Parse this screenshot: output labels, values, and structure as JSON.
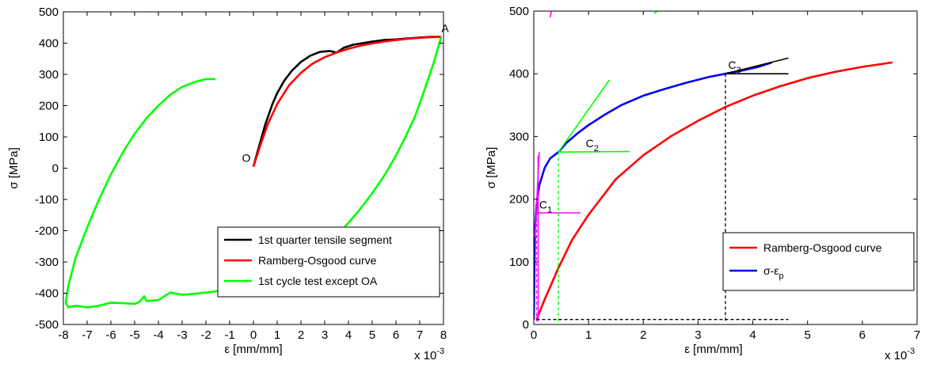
{
  "chart_data": [
    {
      "type": "line",
      "xlabel": "ε [mm/mm]",
      "ylabel": "σ [MPa]",
      "xscale_label": "x 10",
      "xscale_exp": "-3",
      "xlim": [
        -8,
        8
      ],
      "ylim": [
        -500,
        500
      ],
      "xticks": [
        "-8",
        "-7",
        "-6",
        "-5",
        "-4",
        "-3",
        "-2",
        "-1",
        "0",
        "1",
        "2",
        "3",
        "4",
        "5",
        "6",
        "7",
        "8"
      ],
      "yticks": [
        "-500",
        "-400",
        "-300",
        "-200",
        "-100",
        "0",
        "100",
        "200",
        "300",
        "400",
        "500"
      ],
      "grid": false,
      "legend_position": "lower-right",
      "annotations": [
        {
          "text": "O",
          "x": 0,
          "y": 0
        },
        {
          "text": "A",
          "x": 7.9,
          "y": 420
        }
      ],
      "series": [
        {
          "name": "1st quarter tensile segment",
          "color": "#000000",
          "x": [
            0,
            0.2,
            0.5,
            0.8,
            1.0,
            1.3,
            1.6,
            2.0,
            2.4,
            2.8,
            3.2,
            3.5,
            3.8,
            4.2,
            4.6,
            5.0,
            5.5,
            6.0,
            6.5,
            7.0,
            7.5,
            7.9
          ],
          "y": [
            5,
            60,
            140,
            205,
            240,
            280,
            310,
            340,
            360,
            372,
            375,
            370,
            385,
            395,
            400,
            405,
            410,
            412,
            415,
            418,
            420,
            420
          ]
        },
        {
          "name": "Ramberg-Osgood curve",
          "color": "#ff0000",
          "x": [
            0,
            0.3,
            0.6,
            1.0,
            1.5,
            2.0,
            2.5,
            3.0,
            3.5,
            4.0,
            4.5,
            5.0,
            5.5,
            6.0,
            6.5,
            7.0,
            7.5,
            7.9
          ],
          "y": [
            5,
            75,
            140,
            205,
            265,
            305,
            335,
            355,
            370,
            382,
            392,
            399,
            405,
            410,
            414,
            417,
            419,
            420
          ]
        },
        {
          "name": "1st cycle test except OA",
          "color": "#00ff00",
          "x": [
            7.9,
            7.6,
            7.2,
            6.8,
            6.4,
            6.0,
            5.5,
            5.0,
            4.5,
            4.0,
            3.6,
            3.2,
            2.8,
            2.4,
            2.0,
            1.5,
            1.0,
            0.5,
            0.0,
            -0.5,
            -1.0,
            -1.5,
            -2.0,
            -2.5,
            -3.0,
            -3.5,
            -4.0,
            -4.5,
            -4.6,
            -4.8,
            -5.0,
            -5.5,
            -6.0,
            -6.5,
            -7.0,
            -7.5,
            -7.8,
            -7.9,
            -7.8,
            -7.5,
            -7.0,
            -6.5,
            -6.0,
            -5.5,
            -5.0,
            -4.5,
            -4.0,
            -3.5,
            -3.0,
            -2.5,
            -2.0,
            -1.6
          ],
          "y": [
            420,
            340,
            250,
            165,
            100,
            40,
            -25,
            -80,
            -130,
            -175,
            -210,
            -240,
            -268,
            -290,
            -310,
            -330,
            -348,
            -362,
            -372,
            -380,
            -386,
            -393,
            -398,
            -402,
            -405,
            -398,
            -422,
            -425,
            -410,
            -428,
            -434,
            -432,
            -430,
            -440,
            -445,
            -440,
            -445,
            -430,
            -380,
            -290,
            -190,
            -100,
            -20,
            50,
            110,
            160,
            200,
            235,
            260,
            275,
            285,
            285
          ]
        }
      ]
    },
    {
      "type": "line",
      "xlabel": "ε  [mm/mm]",
      "ylabel": "σ [MPa]",
      "xscale_label": "x 10",
      "xscale_exp": "-3",
      "xlim": [
        0,
        7
      ],
      "ylim": [
        0,
        500
      ],
      "xticks": [
        "0",
        "1",
        "2",
        "3",
        "4",
        "5",
        "6",
        "7"
      ],
      "yticks": [
        "0",
        "100",
        "200",
        "300",
        "400",
        "500"
      ],
      "grid": false,
      "legend_position": "lower-right",
      "annotations": [
        {
          "label": "C",
          "sub": "1",
          "x": 0.1,
          "y": 185
        },
        {
          "label": "C",
          "sub": "2",
          "x": 0.95,
          "y": 283
        },
        {
          "label": "C",
          "sub": "3",
          "x": 3.55,
          "y": 408
        }
      ],
      "series": [
        {
          "name": "Ramberg-Osgood curve",
          "color": "#ff0000",
          "x": [
            0.05,
            0.2,
            0.45,
            0.7,
            1.0,
            1.5,
            2.0,
            2.5,
            3.0,
            3.5,
            4.0,
            4.5,
            5.0,
            5.5,
            6.0,
            6.55
          ],
          "y": [
            8,
            40,
            90,
            135,
            175,
            232,
            270,
            300,
            325,
            347,
            365,
            380,
            393,
            403,
            411,
            418
          ]
        },
        {
          "name": "σ-ε",
          "name_sub": "p",
          "color": "#0000ff",
          "x": [
            0.0,
            0.02,
            0.05,
            0.1,
            0.2,
            0.3,
            0.45,
            0.6,
            0.8,
            1.0,
            1.3,
            1.6,
            2.0,
            2.4,
            2.8,
            3.2,
            3.5,
            3.8,
            4.1,
            4.35
          ],
          "y": [
            8,
            150,
            190,
            222,
            250,
            265,
            275,
            290,
            305,
            318,
            335,
            350,
            365,
            376,
            386,
            395,
            400,
            405,
            411,
            418
          ]
        },
        {
          "name": "C1 lines",
          "color": "#ff00ff",
          "segments": [
            {
              "x": [
                0.05,
                0.85
              ],
              "y": [
                178,
                178
              ]
            },
            {
              "x": [
                0.02,
                0.1
              ],
              "y": [
                140,
                275
              ]
            },
            {
              "x": [
                0.08,
                0.08
              ],
              "y": [
                5,
                270
              ]
            },
            {
              "x": [
                0.3,
                0.32
              ],
              "y": [
                490,
                500
              ]
            }
          ]
        },
        {
          "name": "C2 lines",
          "color": "#00ff00",
          "segments": [
            {
              "x": [
                0.45,
                1.38
              ],
              "y": [
                275,
                390
              ]
            },
            {
              "x": [
                0.45,
                1.75
              ],
              "y": [
                275,
                276
              ]
            },
            {
              "x": [
                2.2,
                2.25
              ],
              "y": [
                496,
                500
              ]
            }
          ]
        },
        {
          "name": "C3 lines",
          "color": "#000000",
          "segments": [
            {
              "x": [
                3.5,
                4.65
              ],
              "y": [
                400,
                425
              ]
            },
            {
              "x": [
                3.5,
                4.65
              ],
              "y": [
                400,
                400
              ]
            }
          ]
        },
        {
          "name": "C1 drop",
          "color": "#ff00ff",
          "dashed": true,
          "segments": [
            {
              "x": [
                0.05,
                0.05
              ],
              "y": [
                178,
                5
              ]
            }
          ]
        },
        {
          "name": "C2 drop",
          "color": "#00ff00",
          "dashed": true,
          "segments": [
            {
              "x": [
                0.45,
                0.45
              ],
              "y": [
                275,
                5
              ]
            }
          ]
        },
        {
          "name": "C3 drop",
          "color": "#000000",
          "dashed": true,
          "segments": [
            {
              "x": [
                3.5,
                3.5
              ],
              "y": [
                400,
                5
              ]
            },
            {
              "x": [
                0.05,
                4.65
              ],
              "y": [
                8,
                8
              ]
            }
          ]
        }
      ]
    }
  ]
}
